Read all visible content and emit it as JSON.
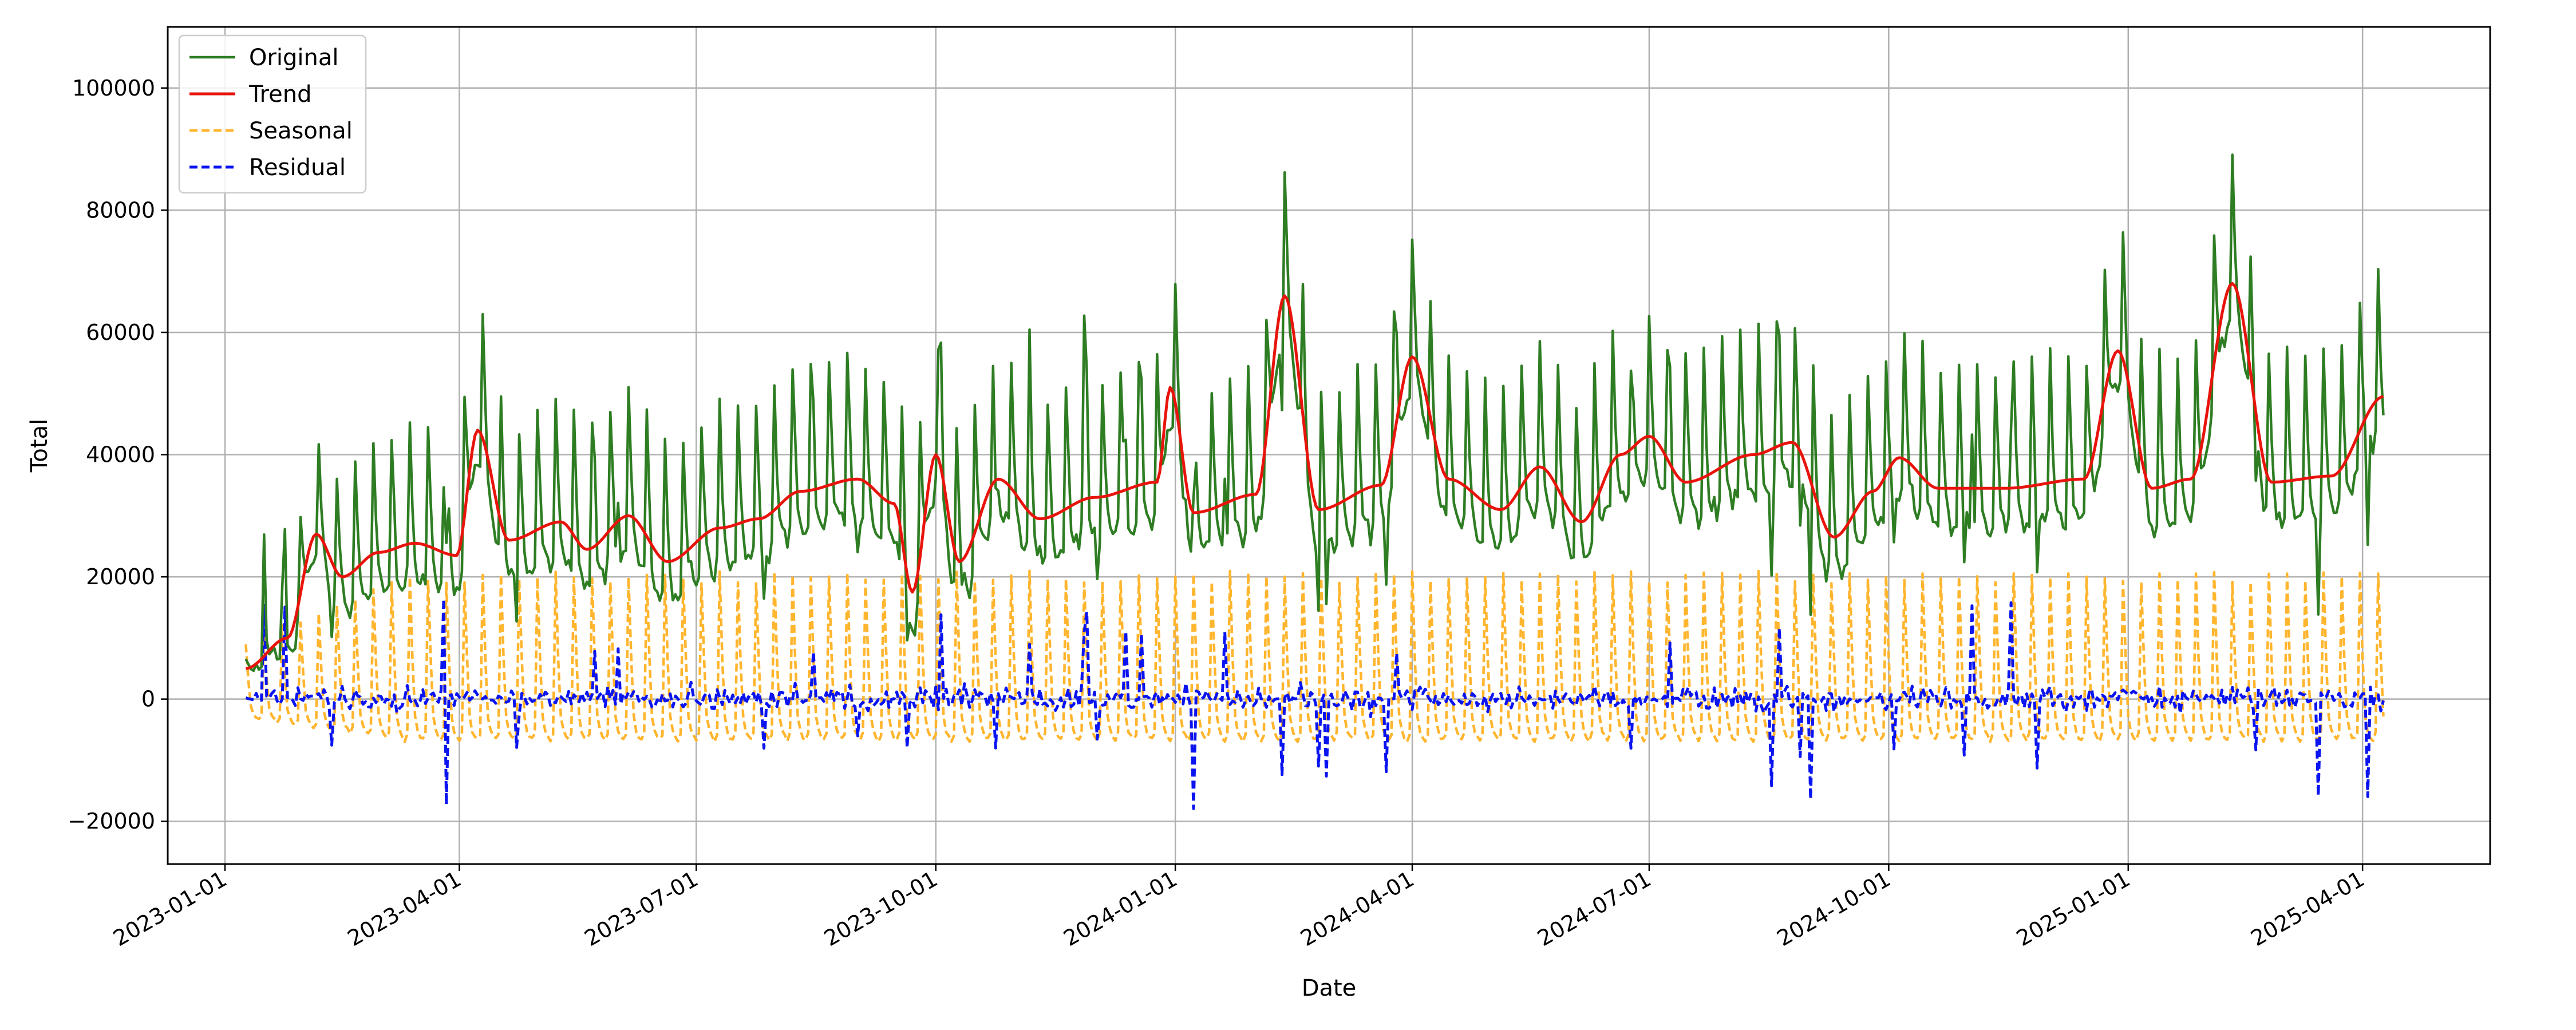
{
  "chart_data": {
    "type": "line",
    "title": "",
    "xlabel": "Date",
    "ylabel": "Total",
    "grid": true,
    "legend_position": "top-left",
    "xlim": [
      "2022-12-10",
      "2025-05-20"
    ],
    "ylim": [
      -27000,
      110000
    ],
    "x_ticks": [
      "2023-01-01",
      "2023-04-01",
      "2023-07-01",
      "2023-10-01",
      "2024-01-01",
      "2024-04-01",
      "2024-07-01",
      "2024-10-01",
      "2025-01-01",
      "2025-04-01"
    ],
    "y_ticks": [
      -20000,
      0,
      20000,
      40000,
      60000,
      80000,
      100000
    ],
    "y_tick_labels": [
      "−20000",
      "0",
      "20000",
      "40000",
      "60000",
      "80000",
      "100000"
    ],
    "x_range": [
      "2023-01-09",
      "2025-04-09"
    ],
    "series": [
      {
        "name": "Original",
        "color": "#2e7d23",
        "style": "solid"
      },
      {
        "name": "Trend",
        "color": "#e8140c",
        "style": "solid"
      },
      {
        "name": "Seasonal",
        "color": "#ffb52e",
        "style": "dashed"
      },
      {
        "name": "Residual",
        "color": "#0a14f0",
        "style": "dashed"
      }
    ],
    "trend_knots": [
      [
        "2023-01-09",
        5000
      ],
      [
        "2023-01-25",
        10000
      ],
      [
        "2023-02-05",
        27000
      ],
      [
        "2023-02-15",
        20000
      ],
      [
        "2023-03-01",
        24000
      ],
      [
        "2023-03-15",
        25500
      ],
      [
        "2023-03-31",
        23500
      ],
      [
        "2023-04-08",
        44000
      ],
      [
        "2023-04-20",
        26000
      ],
      [
        "2023-05-10",
        29000
      ],
      [
        "2023-05-20",
        24500
      ],
      [
        "2023-06-05",
        30000
      ],
      [
        "2023-06-20",
        22500
      ],
      [
        "2023-07-10",
        28000
      ],
      [
        "2023-07-25",
        29500
      ],
      [
        "2023-08-10",
        34000
      ],
      [
        "2023-09-01",
        36000
      ],
      [
        "2023-09-15",
        32000
      ],
      [
        "2023-09-22",
        17500
      ],
      [
        "2023-10-01",
        40000
      ],
      [
        "2023-10-10",
        22500
      ],
      [
        "2023-10-25",
        36000
      ],
      [
        "2023-11-10",
        29500
      ],
      [
        "2023-12-01",
        33000
      ],
      [
        "2023-12-25",
        35500
      ],
      [
        "2023-12-30",
        51000
      ],
      [
        "2024-01-08",
        30500
      ],
      [
        "2024-02-01",
        33500
      ],
      [
        "2024-02-12",
        66000
      ],
      [
        "2024-02-25",
        31000
      ],
      [
        "2024-03-20",
        35000
      ],
      [
        "2024-04-01",
        56000
      ],
      [
        "2024-04-15",
        36000
      ],
      [
        "2024-05-05",
        31000
      ],
      [
        "2024-05-20",
        38000
      ],
      [
        "2024-06-05",
        29000
      ],
      [
        "2024-06-20",
        40000
      ],
      [
        "2024-07-01",
        43000
      ],
      [
        "2024-07-15",
        35500
      ],
      [
        "2024-08-10",
        40000
      ],
      [
        "2024-08-25",
        42000
      ],
      [
        "2024-09-10",
        26500
      ],
      [
        "2024-09-25",
        34000
      ],
      [
        "2024-10-05",
        39500
      ],
      [
        "2024-10-20",
        34500
      ],
      [
        "2024-11-15",
        34500
      ],
      [
        "2024-12-15",
        36000
      ],
      [
        "2024-12-28",
        57000
      ],
      [
        "2025-01-10",
        34500
      ],
      [
        "2025-01-25",
        36000
      ],
      [
        "2025-02-10",
        68000
      ],
      [
        "2025-02-25",
        35500
      ],
      [
        "2025-03-20",
        36500
      ],
      [
        "2025-04-09",
        49500
      ]
    ]
  }
}
